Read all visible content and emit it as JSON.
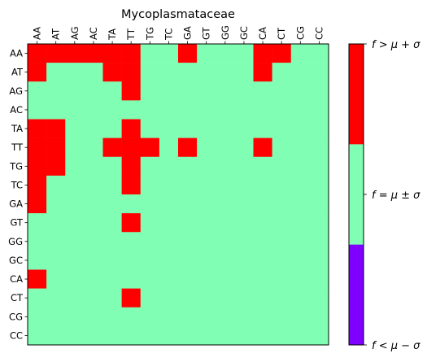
{
  "chart_data": {
    "type": "heatmap",
    "title": "Mycoplasmataceae",
    "x_labels": [
      "AA",
      "AT",
      "AG",
      "AC",
      "TA",
      "TT",
      "TG",
      "TC",
      "GA",
      "GT",
      "GG",
      "GC",
      "CA",
      "CT",
      "CG",
      "CC"
    ],
    "y_labels": [
      "AA",
      "AT",
      "AG",
      "AC",
      "TA",
      "TT",
      "TG",
      "TC",
      "GA",
      "GT",
      "GG",
      "GC",
      "CA",
      "CT",
      "CG",
      "CC"
    ],
    "levels": [
      {
        "key": "high",
        "label": "f > μ + σ",
        "color": "#ff0000"
      },
      {
        "key": "mid",
        "label": "f = μ ± σ",
        "color": "#80ffb4"
      },
      {
        "key": "low",
        "label": "f < μ − σ",
        "color": "#8000ff"
      }
    ],
    "matrix": [
      [
        1,
        1,
        1,
        1,
        1,
        1,
        0,
        0,
        1,
        0,
        0,
        0,
        1,
        1,
        0,
        0
      ],
      [
        1,
        0,
        0,
        0,
        1,
        1,
        0,
        0,
        0,
        0,
        0,
        0,
        1,
        0,
        0,
        0
      ],
      [
        0,
        0,
        0,
        0,
        0,
        1,
        0,
        0,
        0,
        0,
        0,
        0,
        0,
        0,
        0,
        0
      ],
      [
        0,
        0,
        0,
        0,
        0,
        0,
        0,
        0,
        0,
        0,
        0,
        0,
        0,
        0,
        0,
        0
      ],
      [
        1,
        1,
        0,
        0,
        0,
        1,
        0,
        0,
        0,
        0,
        0,
        0,
        0,
        0,
        0,
        0
      ],
      [
        1,
        1,
        0,
        0,
        1,
        1,
        1,
        0,
        1,
        0,
        0,
        0,
        1,
        0,
        0,
        0
      ],
      [
        1,
        1,
        0,
        0,
        0,
        1,
        0,
        0,
        0,
        0,
        0,
        0,
        0,
        0,
        0,
        0
      ],
      [
        1,
        0,
        0,
        0,
        0,
        1,
        0,
        0,
        0,
        0,
        0,
        0,
        0,
        0,
        0,
        0
      ],
      [
        1,
        0,
        0,
        0,
        0,
        0,
        0,
        0,
        0,
        0,
        0,
        0,
        0,
        0,
        0,
        0
      ],
      [
        0,
        0,
        0,
        0,
        0,
        1,
        0,
        0,
        0,
        0,
        0,
        0,
        0,
        0,
        0,
        0
      ],
      [
        0,
        0,
        0,
        0,
        0,
        0,
        0,
        0,
        0,
        0,
        0,
        0,
        0,
        0,
        0,
        0
      ],
      [
        0,
        0,
        0,
        0,
        0,
        0,
        0,
        0,
        0,
        0,
        0,
        0,
        0,
        0,
        0,
        0
      ],
      [
        1,
        0,
        0,
        0,
        0,
        0,
        0,
        0,
        0,
        0,
        0,
        0,
        0,
        0,
        0,
        0
      ],
      [
        0,
        0,
        0,
        0,
        0,
        1,
        0,
        0,
        0,
        0,
        0,
        0,
        0,
        0,
        0,
        0
      ],
      [
        0,
        0,
        0,
        0,
        0,
        0,
        0,
        0,
        0,
        0,
        0,
        0,
        0,
        0,
        0,
        0
      ],
      [
        0,
        0,
        0,
        0,
        0,
        0,
        0,
        0,
        0,
        0,
        0,
        0,
        0,
        0,
        0,
        0
      ]
    ],
    "matrix_legend": "1 = high, 0 = mid, -1 = low",
    "colorbar": {
      "orientation": "vertical",
      "placement": "right",
      "tick_labels": [
        "f > μ + σ",
        "f = μ ± σ",
        "f < μ − σ"
      ]
    }
  }
}
